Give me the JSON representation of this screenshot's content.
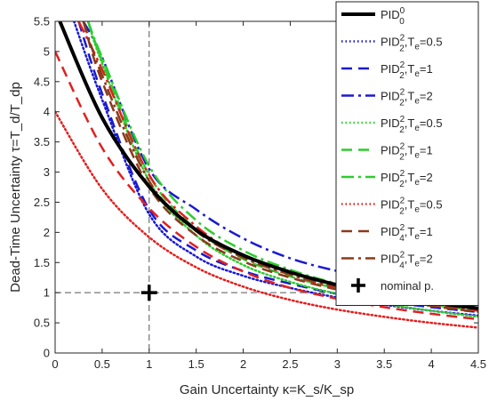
{
  "chart_data": {
    "type": "line",
    "title": "",
    "xlabel": "Gain Uncertainty κ=K_s/K_sp",
    "ylabel": "Dead-Time Uncertainty τ=T_d/T_dp",
    "xlim": [
      0,
      4.5
    ],
    "ylim": [
      0,
      5.5
    ],
    "xticks": [
      0,
      0.5,
      1,
      1.5,
      2,
      2.5,
      3,
      3.5,
      4,
      4.5
    ],
    "yticks": [
      0,
      0.5,
      1,
      1.5,
      2,
      2.5,
      3,
      3.5,
      4,
      4.5,
      5,
      5.5
    ],
    "xtick_labels": [
      "0",
      "0.5",
      "1",
      "1.5",
      "2",
      "2.5",
      "3",
      "3.5",
      "4",
      "4.5"
    ],
    "ytick_labels": [
      "0",
      "0.5",
      "1",
      "1.5",
      "2",
      "2.5",
      "3",
      "3.5",
      "4",
      "4.5",
      "5",
      "5.5"
    ],
    "grid": false,
    "reference_lines": {
      "x": 1,
      "y": 1,
      "style": "dashed"
    },
    "legend_position": "top-right",
    "series": [
      {
        "name": "PID_0^0",
        "legend_main": "PID",
        "legend_sup": "0",
        "legend_sub": "0",
        "legend_te": "",
        "color": "#000000",
        "dash": "solid",
        "width": 4,
        "x": [
          0.05,
          0.5,
          1,
          1.5,
          2,
          2.5,
          3,
          3.5,
          4,
          4.5
        ],
        "y": [
          5.5,
          3.9,
          2.76,
          2.04,
          1.62,
          1.34,
          1.13,
          0.97,
          0.84,
          0.74
        ]
      },
      {
        "name": "PID_2^2,Te=0.5",
        "legend_main": "PID",
        "legend_sup": "2",
        "legend_sub": "2",
        "legend_te": "0.5",
        "color": "#1a1ad0",
        "dash": "dotted",
        "width": 2.5,
        "x": [
          0.2,
          0.5,
          1,
          1.5,
          2,
          2.5,
          3,
          3.5,
          4,
          4.5
        ],
        "y": [
          5.5,
          4.2,
          2.3,
          1.6,
          1.28,
          1.08,
          0.92,
          0.8,
          0.7,
          0.62
        ]
      },
      {
        "name": "PID_2^2,Te=1",
        "legend_main": "PID",
        "legend_sup": "2",
        "legend_sub": "2",
        "legend_te": "1",
        "color": "#1a1ad0",
        "dash": "dashed",
        "width": 2.5,
        "x": [
          0.25,
          0.5,
          1,
          1.5,
          2,
          2.5,
          3,
          3.5,
          4,
          4.5
        ],
        "y": [
          5.5,
          4.3,
          2.38,
          1.7,
          1.36,
          1.15,
          0.98,
          0.86,
          0.76,
          0.68
        ]
      },
      {
        "name": "PID_2^2,Te=2",
        "legend_main": "PID",
        "legend_sup": "2",
        "legend_sub": "2",
        "legend_te": "2",
        "color": "#1a1ad0",
        "dash": "dashdot",
        "width": 2.5,
        "x": [
          0.3,
          0.5,
          1,
          1.5,
          2,
          2.5,
          3,
          3.5,
          4,
          4.5
        ],
        "y": [
          5.5,
          4.9,
          3.05,
          2.38,
          1.9,
          1.57,
          1.36,
          1.22,
          1.12,
          1.04
        ]
      },
      {
        "name": "PID_2^2,Te=0.5 (green)",
        "legend_main": "PID",
        "legend_sup": "2",
        "legend_sub": "2",
        "legend_te": "0.5",
        "color": "#2ecc2e",
        "dash": "dotted",
        "width": 2.5,
        "x": [
          0.35,
          0.5,
          1,
          1.5,
          2,
          2.5,
          3,
          3.5,
          4,
          4.5
        ],
        "y": [
          5.5,
          4.8,
          2.85,
          1.95,
          1.46,
          1.18,
          0.98,
          0.82,
          0.7,
          0.6
        ]
      },
      {
        "name": "PID_2^2,Te=1 (green)",
        "legend_main": "PID",
        "legend_sup": "2",
        "legend_sub": "2",
        "legend_te": "1",
        "color": "#2ecc2e",
        "dash": "dashed",
        "width": 2.5,
        "x": [
          0.35,
          0.5,
          1,
          1.5,
          2,
          2.5,
          3,
          3.5,
          4,
          4.5
        ],
        "y": [
          5.5,
          4.85,
          2.95,
          2.05,
          1.56,
          1.27,
          1.07,
          0.92,
          0.8,
          0.7
        ]
      },
      {
        "name": "PID_2^2,Te=2 (green)",
        "legend_main": "PID",
        "legend_sup": "2",
        "legend_sub": "2",
        "legend_te": "2",
        "color": "#2ecc2e",
        "dash": "dashdot",
        "width": 2.5,
        "x": [
          0.35,
          0.5,
          1,
          1.5,
          2,
          2.5,
          3,
          3.5,
          4,
          4.5
        ],
        "y": [
          5.5,
          4.9,
          3.1,
          2.2,
          1.7,
          1.38,
          1.15,
          0.98,
          0.84,
          0.74
        ]
      },
      {
        "name": "PID_2^2,Te=0.5 (red)",
        "legend_main": "PID",
        "legend_sup": "2",
        "legend_sub": "2",
        "legend_te": "0.5",
        "color": "#e02020",
        "dash": "dotted",
        "width": 2.5,
        "x": [
          0,
          0.5,
          1,
          1.5,
          2,
          2.5,
          3,
          3.5,
          4,
          4.5
        ],
        "y": [
          4.0,
          2.72,
          1.92,
          1.42,
          1.1,
          0.88,
          0.72,
          0.6,
          0.5,
          0.42
        ]
      },
      {
        "name": "PID_4^2,Te=1",
        "legend_main": "PID",
        "legend_sup": "2",
        "legend_sub": "4",
        "legend_te": "1",
        "color": "#e02020",
        "dash": "dashed",
        "width": 2.5,
        "x": [
          0,
          0.5,
          1,
          1.5,
          2,
          2.5,
          3,
          3.5,
          4,
          4.5
        ],
        "y": [
          5.0,
          3.4,
          2.4,
          1.76,
          1.35,
          1.08,
          0.9,
          0.76,
          0.65,
          0.56
        ]
      },
      {
        "name": "PID_4^2,Te=2",
        "legend_main": "PID",
        "legend_sup": "2",
        "legend_sub": "4",
        "legend_te": "2",
        "color": "#e02020",
        "dash": "dashdot",
        "width": 2.5,
        "x": [
          0.25,
          0.5,
          1,
          1.5,
          2,
          2.5,
          3,
          3.5,
          4,
          4.5
        ],
        "y": [
          5.5,
          4.7,
          2.95,
          2.1,
          1.6,
          1.3,
          1.08,
          0.93,
          0.8,
          0.7
        ]
      },
      {
        "name": "PID_4^2,Te=1 (brown)",
        "legend_main": "PID",
        "legend_sup": "2",
        "legend_sub": "4",
        "legend_te": "1",
        "color": "#8b3a1a",
        "dash": "dashed",
        "width": 2.5,
        "x": [
          0.3,
          0.5,
          1,
          1.5,
          2,
          2.5,
          3,
          3.5,
          4,
          4.5
        ],
        "y": [
          5.5,
          4.5,
          2.75,
          1.95,
          1.52,
          1.25,
          1.05,
          0.9,
          0.78,
          0.68
        ]
      },
      {
        "name": "PID_4^2,Te=2 (brown)",
        "legend_main": "PID",
        "legend_sup": "2",
        "legend_sub": "4",
        "legend_te": "2",
        "color": "#8b3a1a",
        "dash": "dashdot",
        "width": 2.5,
        "x": [
          0.3,
          0.5,
          1,
          1.5,
          2,
          2.5,
          3,
          3.5,
          4,
          4.5
        ],
        "y": [
          5.5,
          4.6,
          2.85,
          2.02,
          1.58,
          1.3,
          1.1,
          0.95,
          0.82,
          0.72
        ]
      }
    ],
    "legend_series_indices": [
      0,
      1,
      2,
      3,
      4,
      5,
      6,
      7,
      10,
      11
    ],
    "nominal_point": {
      "name": "nominal p.",
      "x": 1,
      "y": 1,
      "marker": "plus",
      "color": "#000000"
    }
  }
}
